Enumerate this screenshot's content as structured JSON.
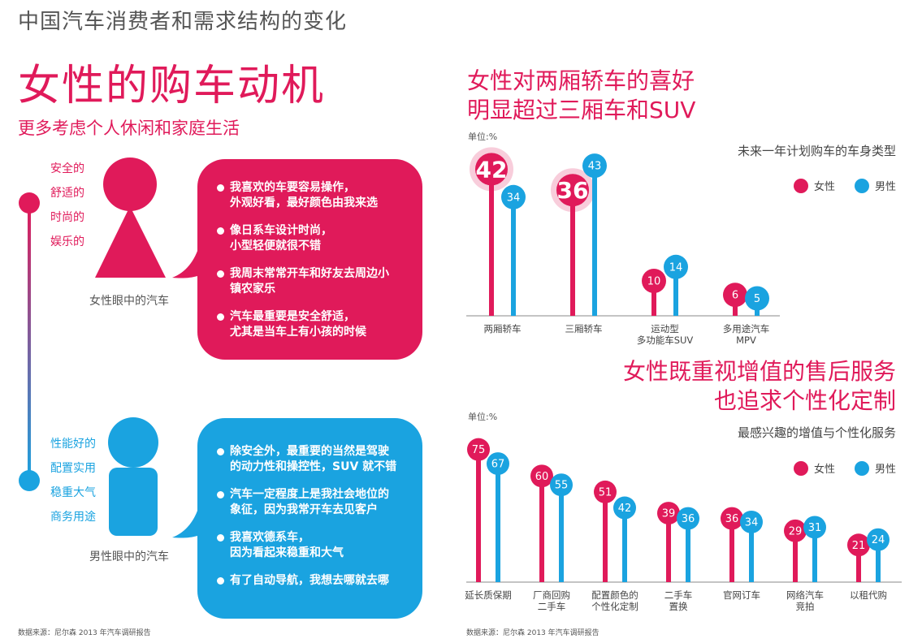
{
  "page_title": "中国汽车消费者和需求结构的变化",
  "colors": {
    "female": "#e01a5a",
    "male": "#1aa3e0",
    "axis": "#888888"
  },
  "left": {
    "title": "女性的购车动机",
    "subtitle": "更多考虑个人休闲和家庭生活",
    "female_traits": [
      "安全的",
      "舒适的",
      "时尚的",
      "娱乐的"
    ],
    "female_caption": "女性眼中的汽车",
    "female_quotes": [
      "我喜欢的车要容易操作，\n外观好看，最好颜色由我来选",
      "像日系车设计时尚，\n小型轻便就很不错",
      "我周末常常开车和好友去周边小\n镇农家乐",
      "汽车最重要是安全舒适，\n尤其是当车上有小孩的时候"
    ],
    "male_traits": [
      "性能好的",
      "配置实用",
      "稳重大气",
      "商务用途"
    ],
    "male_caption": "男性眼中的汽车",
    "male_quotes": [
      "除安全外，最重要的当然是驾驶\n的动力性和操控性，SUV 就不错",
      "汽车一定程度上是我社会地位的\n象征，因为我常开车去见客户",
      "我喜欢德系车，\n因为看起来稳重和大气",
      "有了自动导航，我想去哪就去哪"
    ],
    "source": "数据来源：尼尔森 2013 年汽车调研报告"
  },
  "chart_data": [
    {
      "type": "bar",
      "title_lines": [
        "女性对两厢轿车的喜好",
        "明显超过三厢车和SUV"
      ],
      "subtitle": "未来一年计划购车的车身类型",
      "unit": "单位:%",
      "categories": [
        [
          "两厢轿车"
        ],
        [
          "三厢轿车"
        ],
        [
          "运动型",
          "多功能车SUV"
        ],
        [
          "多用途汽车",
          "MPV"
        ]
      ],
      "series": [
        {
          "name": "女性",
          "values": [
            42,
            36,
            10,
            6
          ]
        },
        {
          "name": "男性",
          "values": [
            34,
            43,
            14,
            5
          ]
        }
      ],
      "highlighted": [
        0,
        1
      ],
      "ylim": [
        0,
        50
      ],
      "legend": "top-right"
    },
    {
      "type": "bar",
      "title_lines": [
        "女性既重视增值的售后服务",
        "也追求个性化定制"
      ],
      "subtitle": "最感兴趣的增值与个性化服务",
      "unit": "单位:%",
      "categories": [
        [
          "延长质保期"
        ],
        [
          "厂商回购",
          "二手车"
        ],
        [
          "配置颜色的",
          "个性化定制"
        ],
        [
          "二手车",
          "置换"
        ],
        [
          "官网订车"
        ],
        [
          "网络汽车",
          "竞拍"
        ],
        [
          "以租代购"
        ]
      ],
      "series": [
        {
          "name": "女性",
          "values": [
            75,
            60,
            51,
            39,
            36,
            29,
            21
          ]
        },
        {
          "name": "男性",
          "values": [
            67,
            55,
            42,
            36,
            34,
            31,
            24
          ]
        }
      ],
      "ylim": [
        0,
        90
      ],
      "legend": "right",
      "source": "数据来源：尼尔森 2013 年汽车调研报告"
    }
  ]
}
